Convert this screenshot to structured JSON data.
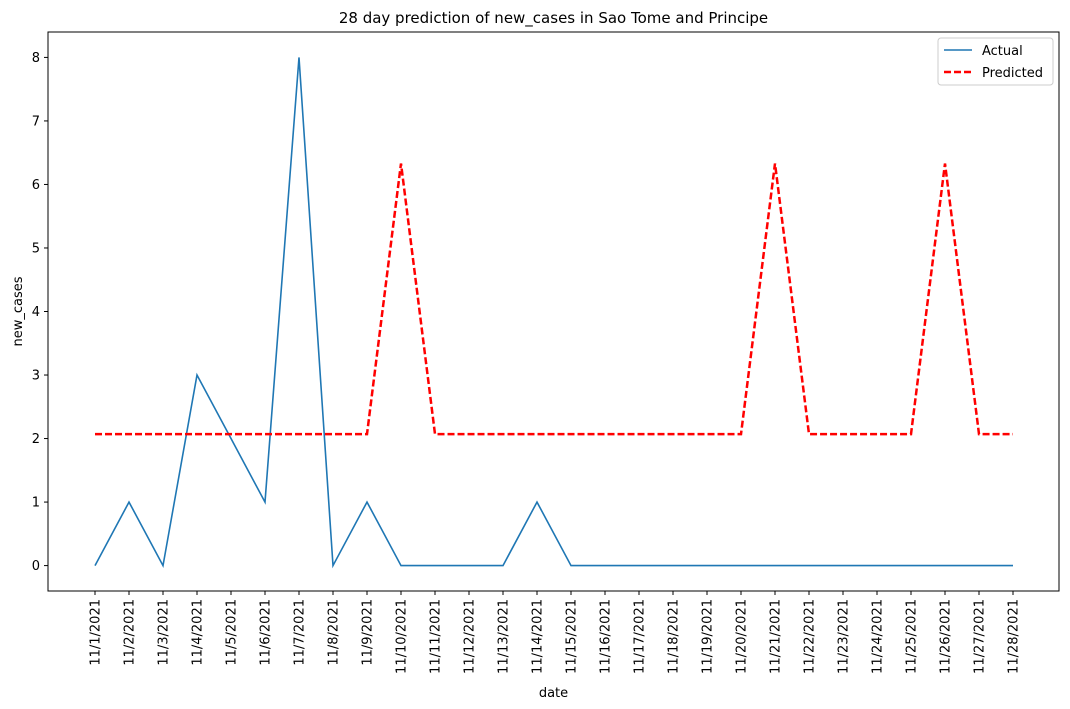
{
  "chart_data": {
    "type": "line",
    "title": "28 day prediction of new_cases in Sao Tome and Principe",
    "xlabel": "date",
    "ylabel": "new_cases",
    "x": [
      "11/1/2021",
      "11/2/2021",
      "11/3/2021",
      "11/4/2021",
      "11/5/2021",
      "11/6/2021",
      "11/7/2021",
      "11/8/2021",
      "11/9/2021",
      "11/10/2021",
      "11/11/2021",
      "11/12/2021",
      "11/13/2021",
      "11/14/2021",
      "11/15/2021",
      "11/16/2021",
      "11/17/2021",
      "11/18/2021",
      "11/19/2021",
      "11/20/2021",
      "11/21/2021",
      "11/22/2021",
      "11/23/2021",
      "11/24/2021",
      "11/25/2021",
      "11/26/2021",
      "11/27/2021",
      "11/28/2021"
    ],
    "ylim": [
      -0.4,
      8.4
    ],
    "yticks": [
      0,
      1,
      2,
      3,
      4,
      5,
      6,
      7,
      8
    ],
    "grid": false,
    "legend_position": "top-right",
    "series": [
      {
        "name": "Actual",
        "color": "#1f77b4",
        "style": "solid",
        "values": [
          0,
          1,
          0,
          3,
          2,
          1,
          8,
          0,
          1,
          0,
          0,
          0,
          0,
          1,
          0,
          0,
          0,
          0,
          0,
          0,
          0,
          0,
          0,
          0,
          0,
          0,
          0,
          0
        ]
      },
      {
        "name": "Predicted",
        "color": "#ff0000",
        "style": "dashed",
        "values": [
          2.07,
          2.07,
          2.07,
          2.07,
          2.07,
          2.07,
          2.07,
          2.07,
          2.07,
          6.33,
          2.07,
          2.07,
          2.07,
          2.07,
          2.07,
          2.07,
          2.07,
          2.07,
          2.07,
          2.07,
          6.33,
          2.07,
          2.07,
          2.07,
          2.07,
          6.33,
          2.07,
          2.07
        ]
      }
    ]
  }
}
